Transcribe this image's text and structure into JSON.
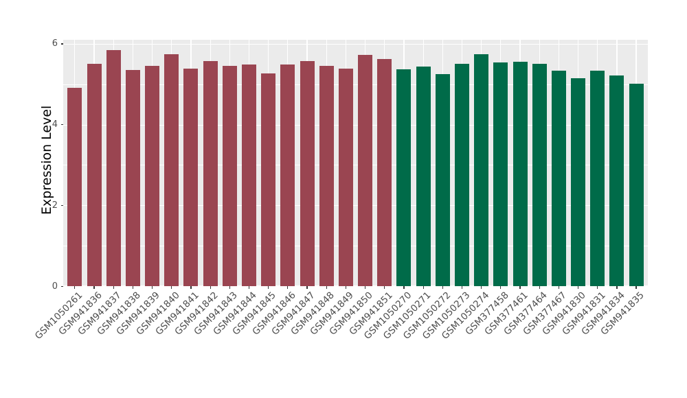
{
  "style": {
    "canvas_bg": "#FFFFFF",
    "panel_bg": "#EBEBEB",
    "grid_color": "#FFFFFF",
    "axis_text_color": "#4D4D4D",
    "axis_title_color": "#000000",
    "tick_color": "#333333"
  },
  "chart_data": {
    "type": "bar",
    "title": "",
    "xlabel": "",
    "ylabel": "Expression Level",
    "ylim": [
      0,
      6.1
    ],
    "yticks_major": [
      0,
      2,
      4,
      6
    ],
    "yticks_minor": [
      1,
      3,
      5
    ],
    "grid": "on",
    "legend": "none",
    "group_colors": {
      "group1": "#9A4551",
      "group2": "#006B49"
    },
    "bars": [
      {
        "label": "GSM1050261",
        "value": 4.91,
        "group": "group1"
      },
      {
        "label": "GSM941836",
        "value": 5.51,
        "group": "group1"
      },
      {
        "label": "GSM941837",
        "value": 5.84,
        "group": "group1"
      },
      {
        "label": "GSM941838",
        "value": 5.36,
        "group": "group1"
      },
      {
        "label": "GSM941839",
        "value": 5.46,
        "group": "group1"
      },
      {
        "label": "GSM941840",
        "value": 5.75,
        "group": "group1"
      },
      {
        "label": "GSM941841",
        "value": 5.39,
        "group": "group1"
      },
      {
        "label": "GSM941842",
        "value": 5.58,
        "group": "group1"
      },
      {
        "label": "GSM941843",
        "value": 5.46,
        "group": "group1"
      },
      {
        "label": "GSM941844",
        "value": 5.49,
        "group": "group1"
      },
      {
        "label": "GSM941845",
        "value": 5.27,
        "group": "group1"
      },
      {
        "label": "GSM941846",
        "value": 5.48,
        "group": "group1"
      },
      {
        "label": "GSM941847",
        "value": 5.58,
        "group": "group1"
      },
      {
        "label": "GSM941848",
        "value": 5.45,
        "group": "group1"
      },
      {
        "label": "GSM941849",
        "value": 5.38,
        "group": "group1"
      },
      {
        "label": "GSM941850",
        "value": 5.73,
        "group": "group1"
      },
      {
        "label": "GSM941851",
        "value": 5.63,
        "group": "group1"
      },
      {
        "label": "GSM1050270",
        "value": 5.37,
        "group": "group2"
      },
      {
        "label": "GSM1050271",
        "value": 5.44,
        "group": "group2"
      },
      {
        "label": "GSM1050272",
        "value": 5.25,
        "group": "group2"
      },
      {
        "label": "GSM1050273",
        "value": 5.51,
        "group": "group2"
      },
      {
        "label": "GSM1050274",
        "value": 5.74,
        "group": "group2"
      },
      {
        "label": "GSM377458",
        "value": 5.54,
        "group": "group2"
      },
      {
        "label": "GSM377461",
        "value": 5.56,
        "group": "group2"
      },
      {
        "label": "GSM377464",
        "value": 5.51,
        "group": "group2"
      },
      {
        "label": "GSM377467",
        "value": 5.34,
        "group": "group2"
      },
      {
        "label": "GSM941830",
        "value": 5.14,
        "group": "group2"
      },
      {
        "label": "GSM941831",
        "value": 5.34,
        "group": "group2"
      },
      {
        "label": "GSM941834",
        "value": 5.22,
        "group": "group2"
      },
      {
        "label": "GSM941835",
        "value": 5.01,
        "group": "group2"
      }
    ]
  }
}
